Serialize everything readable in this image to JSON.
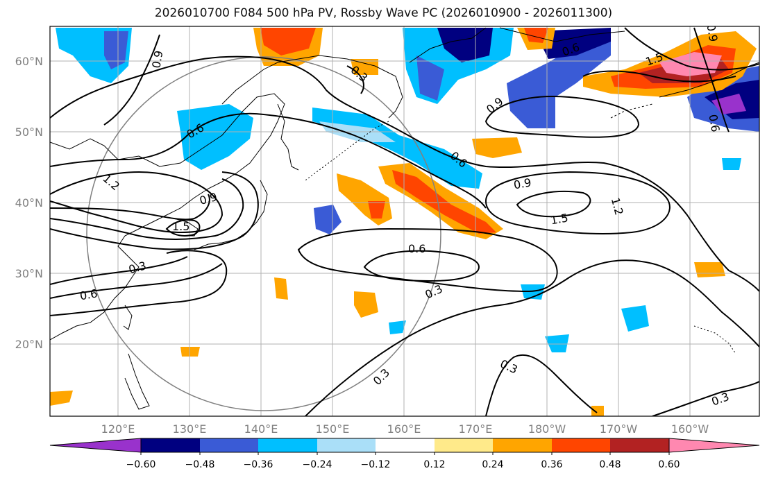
{
  "title": "2026010700 F084 500 hPa PV, Rossby Wave PC (2026010900 - 2026011300)",
  "axes": {
    "x_ticks": [
      "120°E",
      "130°E",
      "140°E",
      "150°E",
      "160°E",
      "170°E",
      "180°W",
      "170°W",
      "160°W"
    ],
    "y_ticks": [
      "60°N",
      "50°N",
      "40°N",
      "30°N",
      "20°N"
    ]
  },
  "contour_labels": [
    "0.9",
    "0.3",
    "0.6",
    "1.5",
    "0.9",
    "0.6",
    "1.2",
    "0.9",
    "1.5",
    "0.3",
    "0.6",
    "0.6",
    "0.9",
    "1.5",
    "1.2",
    "0.6",
    "0.3",
    "0.3",
    "0.3",
    "0.3",
    "0.9",
    "0.6"
  ],
  "colorbar": {
    "ticks": [
      "−0.60",
      "−0.48",
      "−0.36",
      "−0.24",
      "−0.12",
      "0.12",
      "0.24",
      "0.36",
      "0.48",
      "0.60"
    ],
    "colors": {
      "under": "#9932cc",
      "n060": "#000080",
      "n048": "#3a5bd6",
      "n036": "#00bfff",
      "n024": "#aadff8",
      "neutral": "#ffffff",
      "p012": "#ffea8a",
      "p024": "#ffa500",
      "p036": "#ff4500",
      "p048": "#b22222",
      "over": "#ff88b0"
    }
  }
}
